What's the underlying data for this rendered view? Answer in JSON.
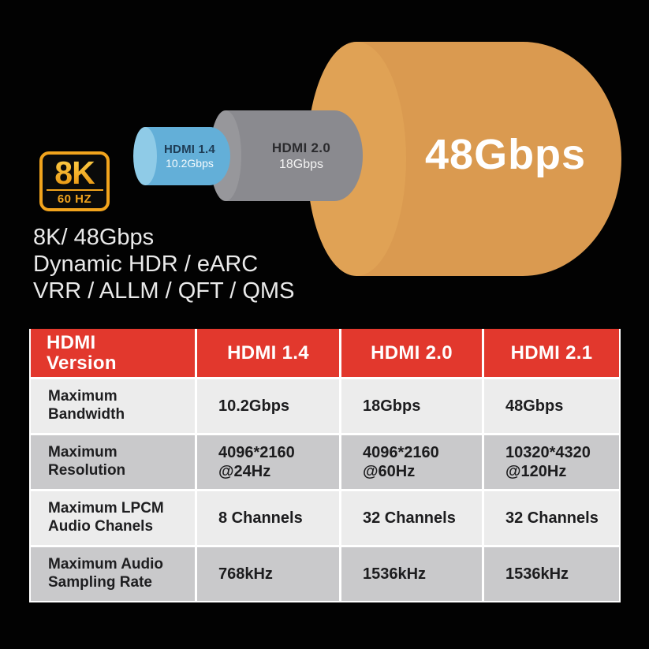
{
  "badge": {
    "top": "8K",
    "bottom": "60 HZ"
  },
  "diagram": {
    "hdmi14": {
      "title": "HDMI 1.4",
      "subtitle": "10.2Gbps"
    },
    "hdmi20": {
      "title": "HDMI 2.0",
      "subtitle": "18Gbps"
    },
    "hdmi21": {
      "bandwidth": "48Gbps"
    }
  },
  "features": {
    "line1": "8K/ 48Gbps",
    "line2": "Dynamic HDR / eARC",
    "line3": "VRR / ALLM / QFT / QMS"
  },
  "table": {
    "headers": [
      "HDMI\nVersion",
      "HDMI 1.4",
      "HDMI 2.0",
      "HDMI 2.1"
    ],
    "rows": [
      {
        "label": "Maximum\nBandwidth",
        "values": [
          "10.2Gbps",
          "18Gbps",
          "48Gbps"
        ]
      },
      {
        "label": "Maximum\nResolution",
        "values": [
          "4096*2160\n@24Hz",
          "4096*2160\n@60Hz",
          "10320*4320\n@120Hz"
        ]
      },
      {
        "label": "Maximum LPCM\nAudio Chanels",
        "values": [
          "8 Channels",
          "32 Channels",
          "32 Channels"
        ]
      },
      {
        "label": "Maximum Audio\nSampling Rate",
        "values": [
          "768kHz",
          "1536kHz",
          "1536kHz"
        ]
      }
    ]
  },
  "colors": {
    "header_red": "#E2382D",
    "badge_gold": "#F2A41D",
    "cylinder_orange": "#DA9A50",
    "cylinder_gray": "#8A8A8F",
    "cylinder_blue": "#63AFD8",
    "row_light": "#ECECEC",
    "row_dark": "#C9C9CB"
  }
}
